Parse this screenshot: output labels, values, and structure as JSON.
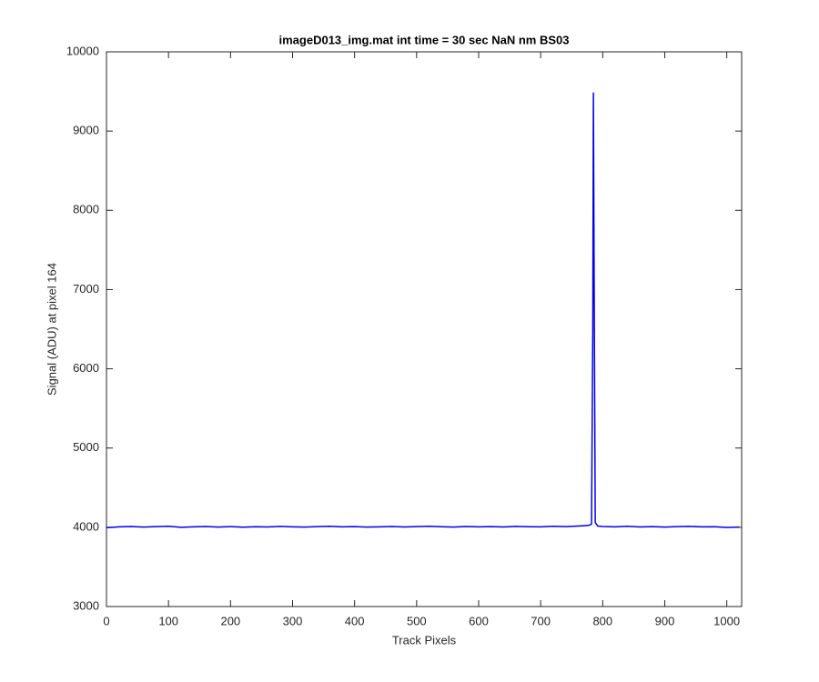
{
  "chart_data": {
    "type": "line",
    "title": "imageD013_img.mat int time = 30 sec  NaN nm BS03",
    "xlabel": "Track Pixels",
    "ylabel": "Signal (ADU) at pixel 164",
    "x": [
      0,
      20,
      40,
      60,
      80,
      100,
      120,
      140,
      160,
      180,
      200,
      220,
      240,
      260,
      280,
      300,
      320,
      340,
      360,
      380,
      400,
      420,
      440,
      460,
      480,
      500,
      520,
      540,
      560,
      580,
      600,
      620,
      640,
      660,
      680,
      700,
      720,
      740,
      760,
      770,
      778,
      782,
      784,
      785,
      786,
      788,
      792,
      800,
      820,
      840,
      860,
      880,
      900,
      920,
      940,
      960,
      980,
      1000,
      1020
    ],
    "series": [
      {
        "color": "#0000e6",
        "values": [
          3995,
          4005,
          4010,
          4002,
          4008,
          4012,
          4000,
          4006,
          4010,
          4003,
          4009,
          4001,
          4007,
          4004,
          4011,
          4006,
          4003,
          4008,
          4012,
          4005,
          4009,
          4002,
          4006,
          4010,
          4004,
          4008,
          4013,
          4007,
          4003,
          4010,
          4006,
          4009,
          4004,
          4011,
          4007,
          4005,
          4012,
          4008,
          4015,
          4020,
          4025,
          4040,
          6500,
          9480,
          7500,
          4060,
          4015,
          4010,
          4006,
          4012,
          4004,
          4009,
          4003,
          4008,
          4011,
          4005,
          4007,
          3998,
          4002
        ]
      }
    ],
    "xlim": [
      0,
      1024
    ],
    "ylim": [
      3000,
      10000
    ],
    "xticks": [
      0,
      100,
      200,
      300,
      400,
      500,
      600,
      700,
      800,
      900,
      1000
    ],
    "yticks": [
      3000,
      4000,
      5000,
      6000,
      7000,
      8000,
      9000,
      10000
    ]
  }
}
